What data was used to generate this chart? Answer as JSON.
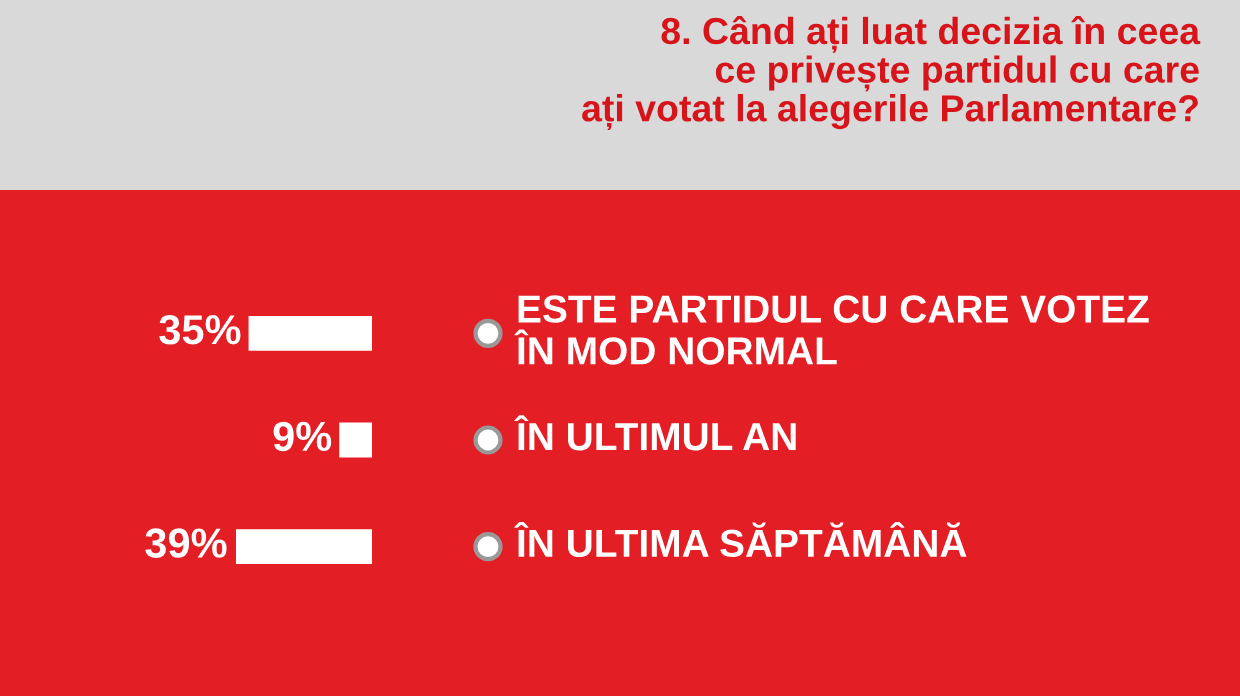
{
  "chart_data": {
    "type": "bar",
    "orientation": "horizontal",
    "title": "8. Când ați luat decizia în ceea\nce privește partidul cu care\nați votat la alegerile Parlamentare?",
    "categories": [
      "ESTE PARTIDUL CU CARE VOTEZ\nÎN MOD NORMAL",
      "ÎN ULTIMUL AN",
      "ÎN ULTIMA SĂPTĂMÂNĂ"
    ],
    "values": [
      35,
      9,
      39
    ],
    "color": "#ffffff",
    "value_labels": [
      "35%",
      "9%",
      "39%"
    ],
    "legend": false
  }
}
